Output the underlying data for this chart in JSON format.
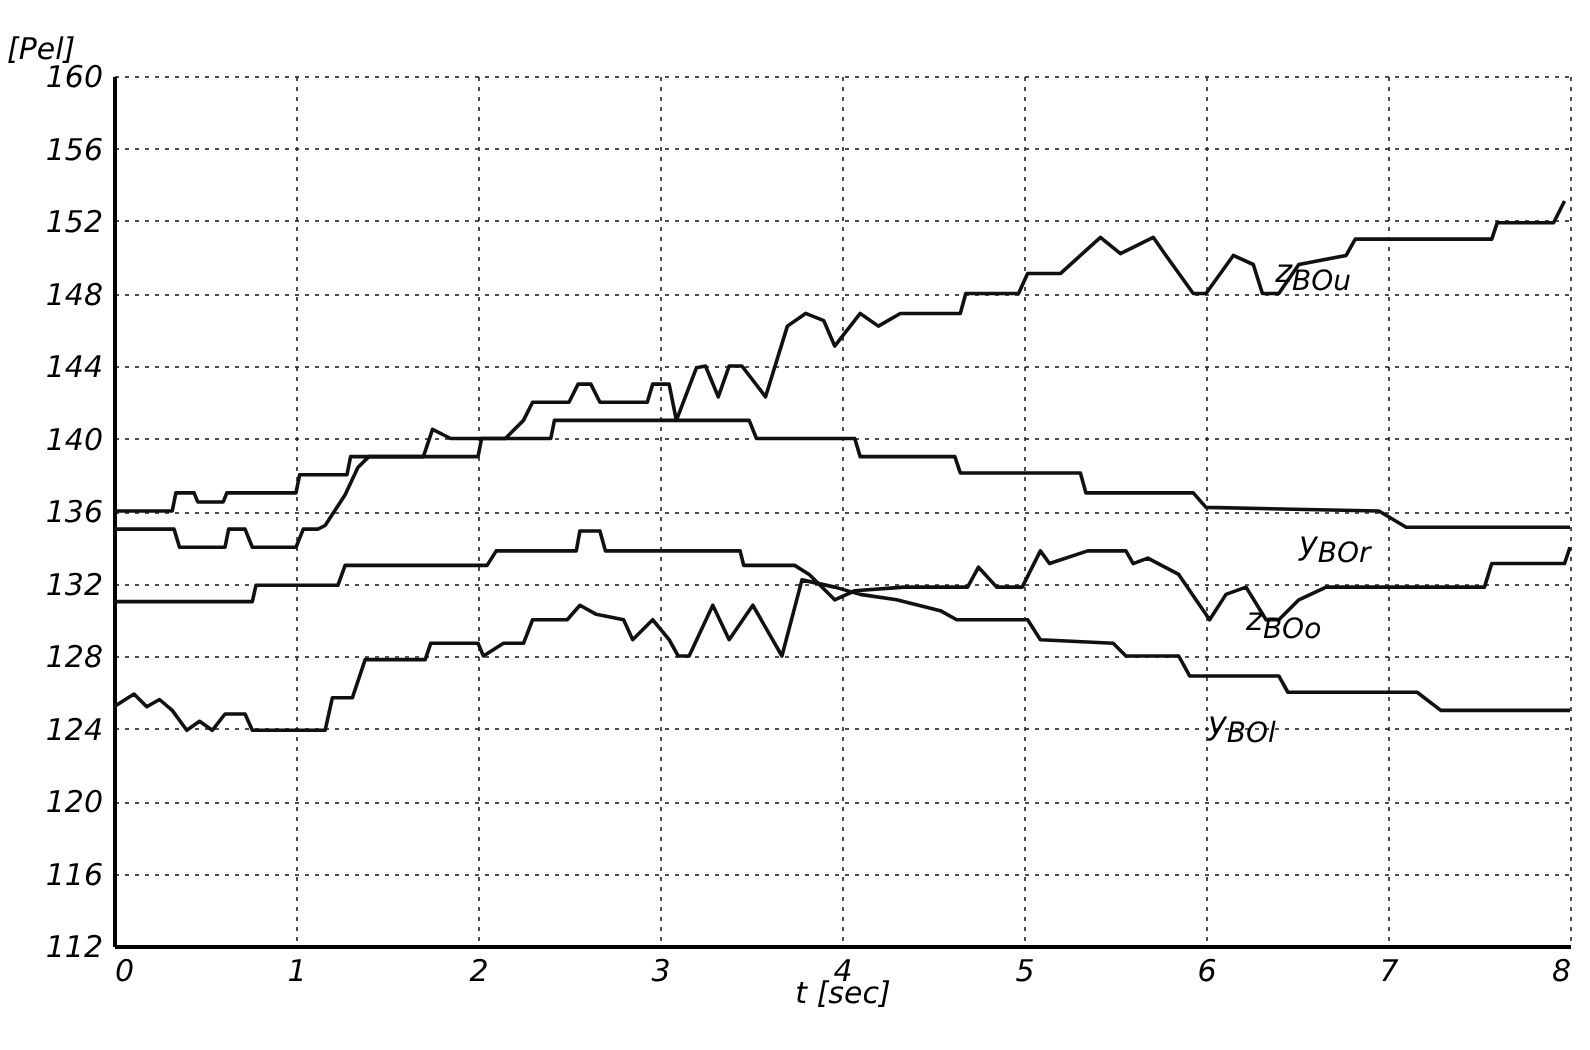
{
  "chart_data": {
    "type": "line",
    "xlabel": "t [sec]",
    "ylabel": "[Pel]",
    "xlim": [
      0,
      8
    ],
    "ylim": [
      112,
      160
    ],
    "xticks": [
      0,
      1,
      2,
      3,
      4,
      5,
      6,
      7,
      8
    ],
    "yticks": [
      112,
      116,
      120,
      124,
      128,
      132,
      136,
      140,
      144,
      148,
      152,
      156,
      160
    ],
    "grid": true,
    "legend": false,
    "marker": "none",
    "line_style": "solid",
    "series": [
      {
        "name": "z$_{BOu}$",
        "color": "#111111",
        "x": [
          0,
          0.33,
          0.36,
          0.61,
          0.63,
          0.72,
          0.76,
          1.0,
          1.04,
          1.12,
          1.16,
          1.27,
          1.34,
          1.4,
          1.7,
          1.75,
          1.85,
          2.15,
          2.25,
          2.3,
          2.5,
          2.55,
          2.62,
          2.67,
          2.93,
          2.96,
          3.05,
          3.09,
          3.2,
          3.25,
          3.32,
          3.38,
          3.45,
          3.58,
          3.7,
          3.8,
          3.9,
          3.96,
          4.1,
          4.2,
          4.32,
          4.65,
          4.68,
          4.97,
          5.02,
          5.2,
          5.42,
          5.53,
          5.71,
          5.78,
          5.93,
          6.0,
          6.15,
          6.26,
          6.31,
          6.4,
          6.51,
          6.77,
          6.82,
          7.57,
          7.6,
          7.91,
          7.97
        ],
        "values": [
          135,
          135,
          134,
          134,
          135,
          135,
          134,
          134,
          135,
          135,
          135.2,
          136.9,
          138.4,
          139,
          139,
          140.5,
          140,
          140,
          141,
          142,
          142,
          143,
          143,
          142,
          142,
          143,
          143,
          141,
          143.9,
          144,
          142.3,
          144,
          144,
          142.3,
          146.2,
          146.9,
          146.5,
          145.1,
          146.9,
          146.2,
          146.9,
          146.9,
          148,
          148,
          149.1,
          149.1,
          151.1,
          150.2,
          151.1,
          150.1,
          148,
          148,
          150.1,
          149.6,
          148,
          148,
          149.6,
          150.1,
          151,
          151,
          151.9,
          151.9,
          153.1
        ]
      },
      {
        "name": "y$_{BOr}$",
        "color": "#111111",
        "x": [
          0,
          0.32,
          0.34,
          0.44,
          0.46,
          0.6,
          0.62,
          1.0,
          1.02,
          1.28,
          1.3,
          2.0,
          2.02,
          2.4,
          2.42,
          3.49,
          3.53,
          4.07,
          4.1,
          4.62,
          4.65,
          5.31,
          5.34,
          5.93,
          6.0,
          6.95,
          7.1,
          8.0
        ],
        "values": [
          136,
          136,
          137,
          137,
          136.5,
          136.5,
          137,
          137,
          138,
          138,
          139,
          139,
          140,
          140,
          141,
          141,
          140,
          140,
          139,
          139,
          138.1,
          138.1,
          137,
          137,
          136.2,
          136,
          135.1,
          135.1
        ]
      },
      {
        "name": "z$_{BOo}$",
        "color": "#111111",
        "x": [
          0,
          0.76,
          0.78,
          1.23,
          1.27,
          2.05,
          2.1,
          2.54,
          2.56,
          2.67,
          2.7,
          3.44,
          3.46,
          3.74,
          3.82,
          3.96,
          4.07,
          4.34,
          4.69,
          4.75,
          4.85,
          4.99,
          5.09,
          5.14,
          5.35,
          5.56,
          5.6,
          5.68,
          5.85,
          6.02,
          6.11,
          6.22,
          6.33,
          6.4,
          6.51,
          6.66,
          7.53,
          7.57,
          7.97,
          8.0
        ],
        "values": [
          131,
          131,
          131.9,
          131.9,
          133,
          133,
          133.8,
          133.8,
          134.9,
          134.9,
          133.8,
          133.8,
          133,
          133,
          132.5,
          131.1,
          131.6,
          131.8,
          131.8,
          132.9,
          131.8,
          131.8,
          133.8,
          133.1,
          133.8,
          133.8,
          133.1,
          133.4,
          132.5,
          130,
          131.4,
          131.8,
          130,
          130,
          131.1,
          131.8,
          131.8,
          133.1,
          133.1,
          134
        ]
      },
      {
        "name": "y$_{BOl}$",
        "color": "#111111",
        "x": [
          0,
          0.11,
          0.18,
          0.25,
          0.32,
          0.4,
          0.47,
          0.54,
          0.61,
          0.72,
          0.76,
          1.16,
          1.2,
          1.31,
          1.38,
          1.71,
          1.74,
          2.0,
          2.03,
          2.14,
          2.25,
          2.3,
          2.49,
          2.56,
          2.65,
          2.8,
          2.85,
          2.96,
          3.05,
          3.1,
          3.16,
          3.29,
          3.38,
          3.51,
          3.67,
          3.78,
          3.96,
          4.1,
          4.3,
          4.54,
          4.63,
          5.02,
          5.09,
          5.49,
          5.56,
          5.85,
          5.91,
          6.4,
          6.45,
          7.16,
          7.29,
          8.0
        ],
        "values": [
          125.2,
          125.9,
          125.2,
          125.6,
          125,
          123.9,
          124.4,
          123.9,
          124.8,
          124.8,
          123.9,
          123.9,
          125.7,
          125.7,
          127.8,
          127.8,
          128.7,
          128.7,
          128,
          128.7,
          128.7,
          130,
          130,
          130.8,
          130.3,
          130,
          128.9,
          130,
          128.9,
          128,
          128,
          130.8,
          128.9,
          130.8,
          128,
          132.2,
          131.8,
          131.4,
          131.1,
          130.5,
          130,
          130,
          128.9,
          128.7,
          128,
          128,
          126.9,
          126.9,
          126,
          126,
          125,
          125
        ]
      }
    ]
  }
}
